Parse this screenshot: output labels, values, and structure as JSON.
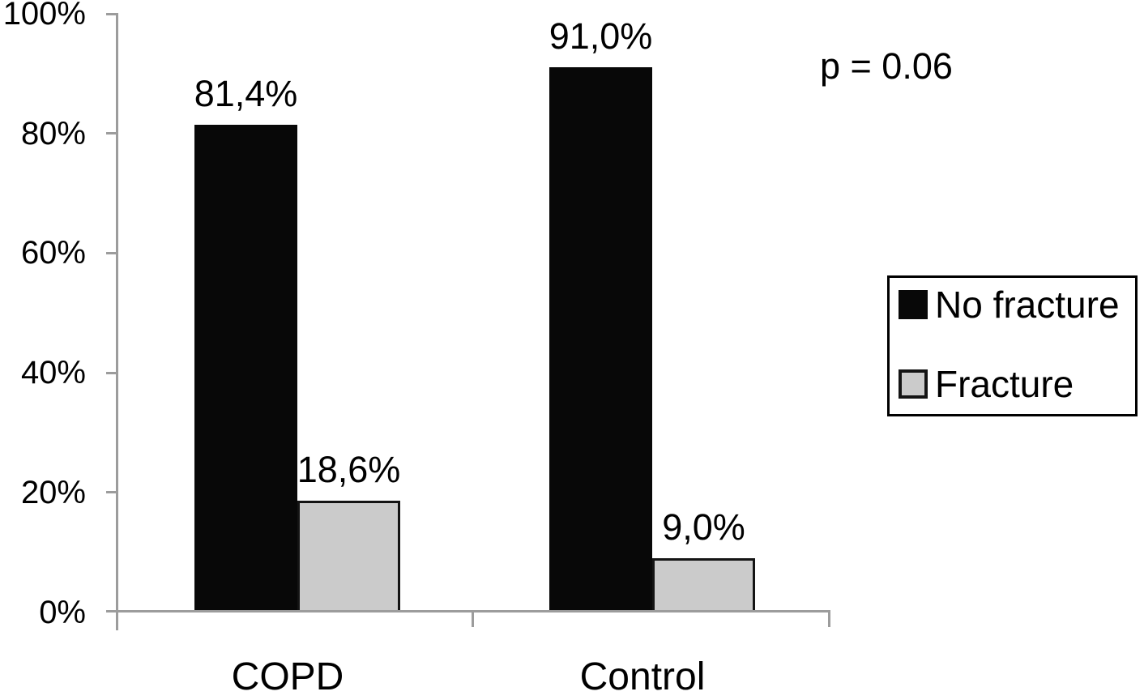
{
  "chart_data": {
    "type": "bar",
    "title": "",
    "xlabel": "",
    "ylabel": "",
    "categories": [
      "COPD",
      "Control"
    ],
    "series": [
      {
        "name": "No fracture",
        "color": "#080808",
        "bar_border": false,
        "values": [
          81.4,
          91.0
        ],
        "value_labels": [
          "81,4%",
          "91,0%"
        ]
      },
      {
        "name": "Fracture",
        "color": "#cbcbcb",
        "bar_border": true,
        "bar_border_color": "#141414",
        "values": [
          18.6,
          9.0
        ],
        "value_labels": [
          "18,6%",
          "9,0%"
        ]
      }
    ],
    "ylim": [
      0,
      100
    ],
    "yticks": [
      "0%",
      "20%",
      "40%",
      "60%",
      "80%",
      "100%"
    ],
    "ytick_values": [
      0,
      20,
      40,
      60,
      80,
      100
    ],
    "grid": false,
    "annotation": "p = 0.06",
    "legend_position": "right",
    "legend": [
      "No fracture",
      "Fracture"
    ],
    "axis_color": "#9c9c9c",
    "text_color": "#000000"
  }
}
